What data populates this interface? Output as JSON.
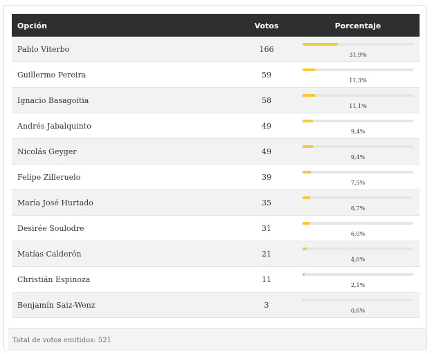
{
  "table": {
    "headers": [
      "Opción",
      "Votos",
      "Porcentaje"
    ],
    "rows": [
      {
        "option": "Pablo Viterbo",
        "votes": 166,
        "percent": {
          "value": 31.9,
          "label": "31,9%"
        }
      },
      {
        "option": "Guillermo Pereira",
        "votes": 59,
        "percent": {
          "value": 11.3,
          "label": "11,3%"
        }
      },
      {
        "option": "Ignacio Basagoitia",
        "votes": 58,
        "percent": {
          "value": 11.1,
          "label": "11,1%"
        }
      },
      {
        "option": "Andrés Jabalquinto",
        "votes": 49,
        "percent": {
          "value": 9.4,
          "label": "9,4%"
        }
      },
      {
        "option": "Nicolás Geyger",
        "votes": 49,
        "percent": {
          "value": 9.4,
          "label": "9,4%"
        }
      },
      {
        "option": "Felipe Zilleruelo",
        "votes": 39,
        "percent": {
          "value": 7.5,
          "label": "7,5%"
        }
      },
      {
        "option": "María José Hurtado",
        "votes": 35,
        "percent": {
          "value": 6.7,
          "label": "6,7%"
        }
      },
      {
        "option": "Desirée Soulodre",
        "votes": 31,
        "percent": {
          "value": 6.0,
          "label": "6,0%"
        }
      },
      {
        "option": "Matías Calderón",
        "votes": 21,
        "percent": {
          "value": 4.0,
          "label": "4,0%"
        }
      },
      {
        "option": "Christián Espinoza",
        "votes": 11,
        "percent": {
          "value": 2.1,
          "label": "2,1%"
        }
      },
      {
        "option": "Benjamín Saiz-Wenz",
        "votes": 3,
        "percent": {
          "value": 0.6,
          "label": "0,6%"
        }
      }
    ]
  },
  "footer": "Total de votos emitidos: 521"
}
